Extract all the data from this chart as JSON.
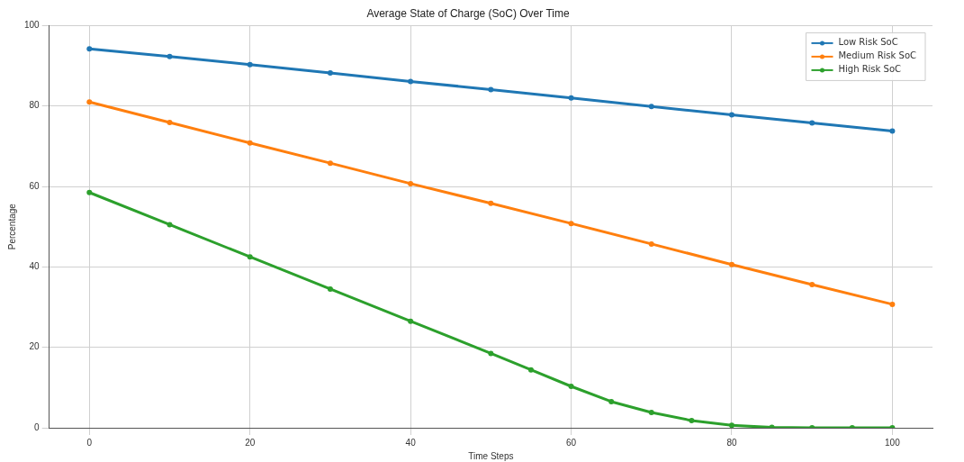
{
  "chart_data": {
    "type": "line",
    "title": "Average State of Charge (SoC) Over Time",
    "xlabel": "Time Steps",
    "ylabel": "Percentage",
    "xlim": [
      -5,
      105
    ],
    "xticks": [
      0,
      20,
      40,
      60,
      80,
      100
    ],
    "ylim": [
      0,
      100
    ],
    "yticks": [
      0,
      20,
      40,
      60,
      80,
      100
    ],
    "grid": true,
    "legend": "top right",
    "marker": "circle",
    "series": [
      {
        "name": "Low Risk SoC",
        "color": "#1f77b4",
        "x": [
          0,
          10,
          20,
          30,
          40,
          50,
          60,
          70,
          80,
          90,
          100
        ],
        "values": [
          94.2,
          92.3,
          90.3,
          88.2,
          86.1,
          84.1,
          82.0,
          79.9,
          77.8,
          75.8,
          73.8
        ]
      },
      {
        "name": "Medium Risk SoC",
        "color": "#ff7f0e",
        "x": [
          0,
          10,
          20,
          30,
          40,
          50,
          60,
          70,
          80,
          90,
          100
        ],
        "values": [
          81.0,
          75.9,
          70.8,
          65.8,
          60.7,
          55.8,
          50.8,
          45.7,
          40.6,
          35.6,
          30.7
        ]
      },
      {
        "name": "High Risk SoC",
        "color": "#2ca02c",
        "x": [
          0,
          10,
          20,
          30,
          40,
          50,
          55,
          60,
          65,
          70,
          75,
          80,
          85,
          90,
          95,
          100
        ],
        "values": [
          58.5,
          50.5,
          42.5,
          34.5,
          26.5,
          18.5,
          14.4,
          10.3,
          6.5,
          3.8,
          1.8,
          0.6,
          0.1,
          0,
          0,
          0
        ]
      }
    ]
  }
}
